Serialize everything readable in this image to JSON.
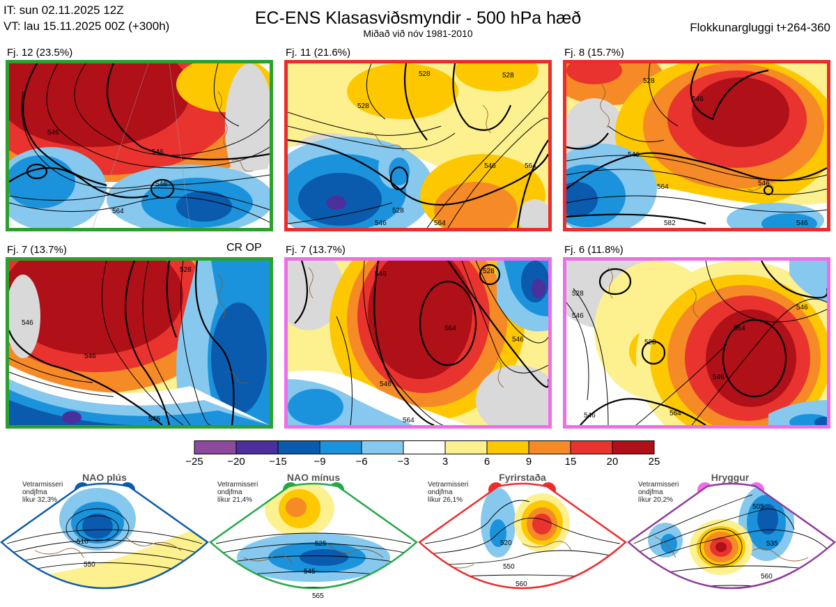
{
  "header": {
    "it_line": "IT: sun 02.11.2025 12Z",
    "vt_line": "VT: lau 15.11.2025 00Z  (+300h)",
    "title": "EC-ENS Klasasviðsmyndir - 500 hPa hæð",
    "subtitle": "Miðað við nóv 1981-2010",
    "window": "Flokkunargluggi t+264-360"
  },
  "panels": [
    {
      "label": "Fj. 12 (23.5%)",
      "regime_color": "#22a845",
      "contours": [
        "546",
        "546",
        "564",
        "546"
      ]
    },
    {
      "label": "Fj. 11 (21.6%)",
      "regime_color": "#ee2b2b",
      "contours": [
        "528",
        "528",
        "528",
        "546",
        "564",
        "528",
        "546",
        "564"
      ]
    },
    {
      "label": "Fj. 8 (15.7%)",
      "regime_color": "#ee2b2b",
      "contours": [
        "528",
        "546",
        "546",
        "564",
        "546",
        "582",
        "546"
      ]
    },
    {
      "label": "Fj. 7 (13.7%)",
      "regime_color": "#22a845",
      "extra": "CR OP",
      "contours": [
        "546",
        "546",
        "528",
        "546"
      ]
    },
    {
      "label": "Fj. 7 (13.7%)",
      "regime_color": "#ee6ee8",
      "contours": [
        "546",
        "528",
        "564",
        "546",
        "546",
        "564"
      ]
    },
    {
      "label": "Fj. 6 (11.8%)",
      "regime_color": "#ee6ee8",
      "contours": [
        "528",
        "546",
        "564",
        "546",
        "528",
        "546",
        "564",
        "546"
      ]
    }
  ],
  "chart_data": {
    "type": "heatmap",
    "title": "EC-ENS Klasasviðsmyndir - 500 hPa hæð",
    "colorbar": {
      "ticks": [
        "−25",
        "−20",
        "−15",
        "−9",
        "−6",
        "−3",
        "3",
        "6",
        "9",
        "15",
        "20",
        "25"
      ],
      "colors": [
        "#8b4a9c",
        "#4b2f9b",
        "#0a5aad",
        "#1b93dc",
        "#86c8ee",
        "#ffffff",
        "#fdf08e",
        "#fdc800",
        "#f58a26",
        "#e8332e",
        "#b01018"
      ]
    }
  },
  "regimes": [
    {
      "name": "NAO plús",
      "clim_lines": [
        "Vetrarmisseri",
        "ondjfma",
        "líkur 32,3%"
      ],
      "color": "#0a5aad",
      "contours": [
        "510",
        "550"
      ]
    },
    {
      "name": "NAO mínus",
      "clim_lines": [
        "Vetrarmisseri",
        "ondjfma",
        "líkur 21,4%"
      ],
      "color": "#22a845",
      "contours": [
        "525",
        "545",
        "565"
      ]
    },
    {
      "name": "Fyrirstaða",
      "clim_lines": [
        "Vetrarmisseri",
        "ondjfma",
        "líkur 26,1%"
      ],
      "color": "#ee2b2b",
      "contours": [
        "520",
        "550",
        "560"
      ]
    },
    {
      "name": "Hryggur",
      "clim_lines": [
        "Vetrarmisseri",
        "ondjfma",
        "líkur 20,2%"
      ],
      "color": "#ee6ee8",
      "contours": [
        "505",
        "535",
        "560"
      ]
    }
  ]
}
